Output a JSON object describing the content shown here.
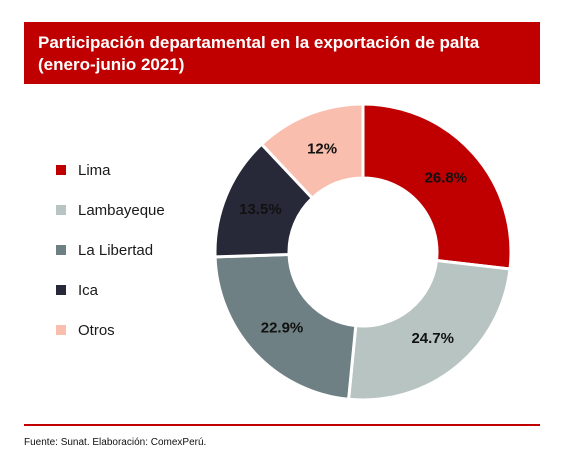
{
  "chart_data": {
    "type": "pie",
    "variant": "donut",
    "title": "Participación departamental en la exportación de palta (enero-junio 2021)",
    "categories": [
      "Lima",
      "Lambayeque",
      "La Libertad",
      "Ica",
      "Otros"
    ],
    "values": [
      26.8,
      24.7,
      22.9,
      13.5,
      12
    ],
    "value_labels": [
      "26.8%",
      "24.7%",
      "22.9%",
      "13.5%",
      "12%"
    ],
    "colors": [
      "#c00000",
      "#b8c4c1",
      "#6e8083",
      "#272838",
      "#f9beae"
    ],
    "legend_position": "left",
    "start_angle": "top, clockwise"
  },
  "source": "Fuente: Sunat. Elaboración: ComexPerú."
}
